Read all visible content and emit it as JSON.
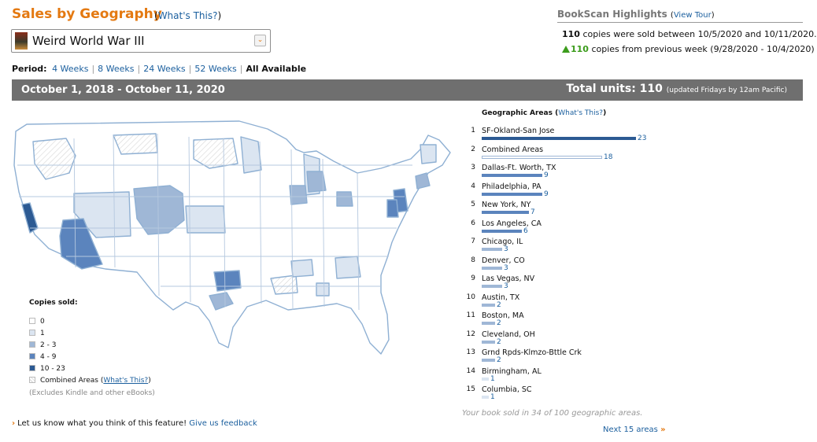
{
  "header": {
    "title": "Sales by Geography",
    "whats_this_open": "(",
    "whats_this_link": "What's This?",
    "whats_this_close": ")"
  },
  "book_select": {
    "selected": "Weird World War III",
    "arrow": "⌄"
  },
  "period": {
    "label": "Period:",
    "options": [
      "4 Weeks",
      "8 Weeks",
      "24 Weeks",
      "52 Weeks"
    ],
    "active": "All Available"
  },
  "highlights": {
    "title": "BookScan Highlights",
    "view_tour_open": "(",
    "view_tour": "View Tour",
    "view_tour_close": ")",
    "copies": "110",
    "copies_text": "copies were sold between 10/5/2020 and 10/11/2020.",
    "change": "110",
    "change_text": "copies from previous week (9/28/2020 - 10/4/2020)"
  },
  "banner": {
    "range": "October 1, 2018 - October 11, 2020",
    "total_label": "Total units: 110",
    "updated": "(updated Fridays by 12am Pacific)"
  },
  "legend": {
    "title": "Copies sold:",
    "items": [
      {
        "label": "0",
        "color": "#ffffff"
      },
      {
        "label": "1",
        "color": "#dbe5f1"
      },
      {
        "label": "2 - 3",
        "color": "#9fb7d6"
      },
      {
        "label": "4 - 9",
        "color": "#5b84bd"
      },
      {
        "label": "10 - 23",
        "color": "#2c5a93"
      }
    ],
    "combined_label": "Combined Areas",
    "combined_link": "What's This?",
    "note": "(Excludes Kindle and other eBooks)"
  },
  "feedback": {
    "text": "Let us know what you think of this feature!",
    "link": "Give us feedback"
  },
  "geo_areas": {
    "title": "Geographic Areas",
    "whats_this": "What's This?",
    "max": 23,
    "rows": [
      {
        "rank": "1",
        "name": "SF-Okland-San Jose",
        "count": 23,
        "color": "#2c5a93"
      },
      {
        "rank": "2",
        "name": "Combined Areas",
        "count": 18,
        "color": "striped"
      },
      {
        "rank": "3",
        "name": "Dallas-Ft. Worth, TX",
        "count": 9,
        "color": "#5b84bd"
      },
      {
        "rank": "4",
        "name": "Philadelphia, PA",
        "count": 9,
        "color": "#5b84bd"
      },
      {
        "rank": "5",
        "name": "New York, NY",
        "count": 7,
        "color": "#5b84bd"
      },
      {
        "rank": "6",
        "name": "Los Angeles, CA",
        "count": 6,
        "color": "#5b84bd"
      },
      {
        "rank": "7",
        "name": "Chicago, IL",
        "count": 3,
        "color": "#9fb7d6"
      },
      {
        "rank": "8",
        "name": "Denver, CO",
        "count": 3,
        "color": "#9fb7d6"
      },
      {
        "rank": "9",
        "name": "Las Vegas, NV",
        "count": 3,
        "color": "#9fb7d6"
      },
      {
        "rank": "10",
        "name": "Austin, TX",
        "count": 2,
        "color": "#9fb7d6"
      },
      {
        "rank": "11",
        "name": "Boston, MA",
        "count": 2,
        "color": "#9fb7d6"
      },
      {
        "rank": "12",
        "name": "Cleveland, OH",
        "count": 2,
        "color": "#9fb7d6"
      },
      {
        "rank": "13",
        "name": "Grnd Rpds-Klmzo-Bttle Crk",
        "count": 2,
        "color": "#9fb7d6"
      },
      {
        "rank": "14",
        "name": "Birmingham, AL",
        "count": 1,
        "color": "#dbe5f1"
      },
      {
        "rank": "15",
        "name": "Columbia, SC",
        "count": 1,
        "color": "#dbe5f1"
      }
    ]
  },
  "sold_note": "Your book sold in 34 of 100 geographic areas.",
  "next_link": "Next 15 areas",
  "next_chevron": "»"
}
